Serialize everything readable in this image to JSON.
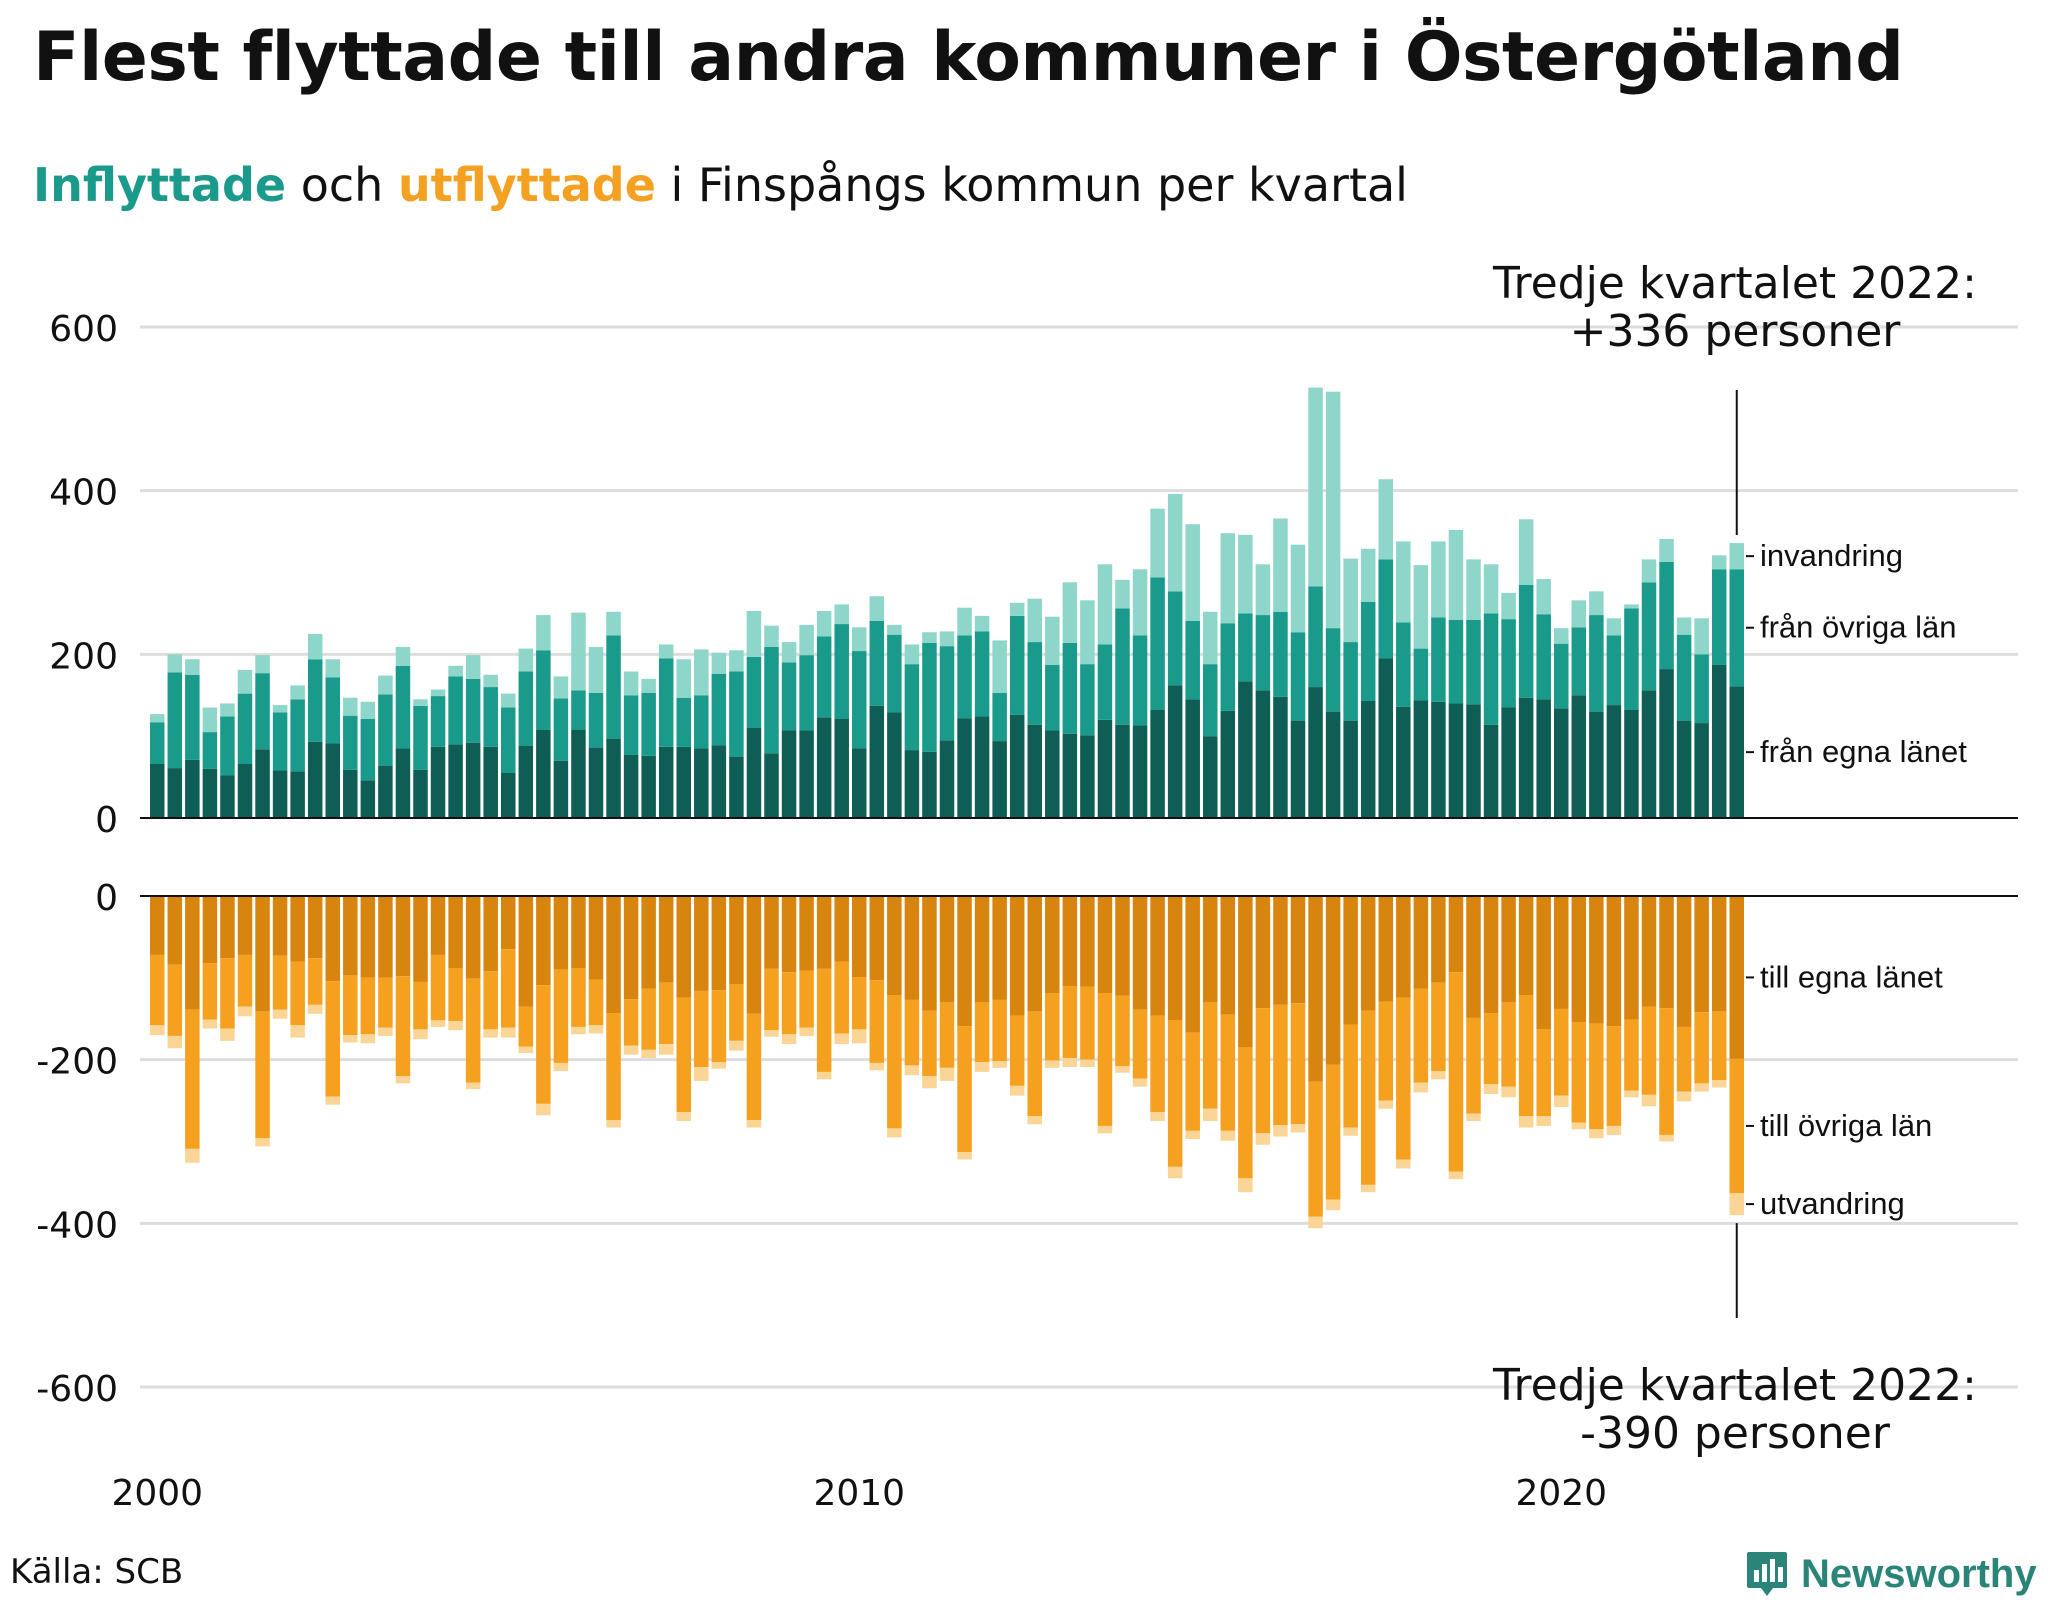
{
  "title": "Flest flyttade till andra kommuner i Östergötland",
  "subtitle": {
    "in_word": "Inflyttade",
    "mid": " och ",
    "out_word": "utflyttade",
    "rest": " i Finspångs kommun per kvartal"
  },
  "source": "Källa: SCB",
  "brand": "Newsworthy",
  "colors": {
    "in_egna": "#0f5e55",
    "in_ovriga": "#1a9a8a",
    "in_invandring": "#8ed5ca",
    "out_egna": "#d8850f",
    "out_ovriga": "#f5a01f",
    "out_utvandring": "#fbd596",
    "grid": "#dddddd"
  },
  "annotations": {
    "top_line1": "Tredje kvartalet 2022:",
    "top_line2": "+336 personer",
    "bottom_line1": "Tredje kvartalet 2022:",
    "bottom_line2": "-390 personer"
  },
  "chart_data": {
    "type": "bar",
    "stacked": true,
    "x_start": "2000 Q1",
    "x_ticks": [
      "2000",
      "2010",
      "2020"
    ],
    "top_panel": {
      "ylim": [
        0,
        600
      ],
      "y_ticks": [
        "600",
        "400",
        "200",
        "0"
      ],
      "series": [
        {
          "name": "från egna länet",
          "values": [
            66,
            61,
            71,
            60,
            52,
            66,
            84,
            58,
            57,
            93,
            91,
            59,
            46,
            64,
            85,
            59,
            87,
            90,
            92,
            87,
            55,
            88,
            108,
            70,
            108,
            86,
            97,
            77,
            76,
            87,
            87,
            85,
            89,
            75,
            110,
            79,
            107,
            107,
            123,
            121,
            85,
            137,
            129,
            83,
            81,
            95,
            122,
            124,
            94,
            126,
            114,
            107,
            103,
            101,
            120,
            114,
            113,
            132,
            162,
            145,
            100,
            131,
            167,
            156,
            148,
            119,
            160,
            130,
            119,
            143,
            195,
            136,
            144,
            142,
            140,
            139,
            114,
            135,
            147,
            145,
            134,
            150,
            130,
            138,
            132,
            156,
            182,
            119,
            116,
            187,
            161
          ]
        },
        {
          "name": "från övriga län",
          "values": [
            51,
            117,
            104,
            45,
            72,
            86,
            93,
            71,
            88,
            101,
            81,
            66,
            75,
            87,
            101,
            78,
            62,
            83,
            78,
            73,
            80,
            91,
            97,
            76,
            48,
            67,
            126,
            73,
            77,
            108,
            60,
            65,
            87,
            104,
            87,
            130,
            83,
            92,
            99,
            116,
            119,
            104,
            95,
            105,
            133,
            115,
            101,
            104,
            59,
            121,
            101,
            80,
            111,
            87,
            92,
            142,
            110,
            162,
            115,
            96,
            88,
            107,
            83,
            92,
            104,
            108,
            123,
            102,
            96,
            121,
            121,
            103,
            63,
            103,
            102,
            103,
            136,
            108,
            138,
            104,
            79,
            83,
            118,
            85,
            124,
            132,
            131,
            105,
            84,
            117,
            143
          ]
        },
        {
          "name": "invandring",
          "values": [
            10,
            22,
            19,
            30,
            16,
            29,
            22,
            9,
            17,
            31,
            22,
            22,
            21,
            23,
            23,
            8,
            8,
            13,
            29,
            15,
            17,
            28,
            43,
            27,
            95,
            56,
            29,
            29,
            17,
            17,
            47,
            56,
            26,
            26,
            56,
            26,
            25,
            37,
            31,
            24,
            29,
            30,
            12,
            24,
            13,
            18,
            34,
            19,
            64,
            16,
            53,
            59,
            74,
            78,
            98,
            35,
            81,
            84,
            119,
            118,
            64,
            110,
            96,
            62,
            114,
            107,
            243,
            289,
            102,
            65,
            98,
            99,
            102,
            93,
            110,
            74,
            60,
            32,
            80,
            43,
            19,
            33,
            29,
            21,
            5,
            28,
            28,
            21,
            44,
            17,
            32
          ]
        }
      ]
    },
    "bottom_panel": {
      "ylim": [
        -600,
        0
      ],
      "y_ticks": [
        "0",
        "-200",
        "-400",
        "-600"
      ],
      "series": [
        {
          "name": "till egna länet",
          "values": [
            -72,
            -84,
            -139,
            -82,
            -76,
            -72,
            -141,
            -73,
            -80,
            -76,
            -104,
            -97,
            -100,
            -100,
            -98,
            -105,
            -72,
            -88,
            -101,
            -92,
            -65,
            -135,
            -109,
            -90,
            -88,
            -102,
            -143,
            -126,
            -113,
            -106,
            -124,
            -116,
            -115,
            -108,
            -144,
            -89,
            -93,
            -91,
            -89,
            -80,
            -99,
            -103,
            -121,
            -127,
            -140,
            -130,
            -159,
            -130,
            -127,
            -146,
            -141,
            -119,
            -110,
            -111,
            -119,
            -122,
            -139,
            -146,
            -152,
            -167,
            -130,
            -145,
            -185,
            -137,
            -133,
            -131,
            -227,
            -206,
            -157,
            -140,
            -129,
            -124,
            -113,
            -106,
            -93,
            -149,
            -143,
            -130,
            -121,
            -163,
            -138,
            -154,
            -156,
            -159,
            -151,
            -135,
            -137,
            -160,
            -142,
            -141,
            -199
          ]
        },
        {
          "name": "till övriga län",
          "values": [
            -86,
            -87,
            -170,
            -69,
            -86,
            -63,
            -155,
            -66,
            -78,
            -57,
            -141,
            -73,
            -69,
            -61,
            -122,
            -58,
            -80,
            -65,
            -127,
            -71,
            -96,
            -49,
            -145,
            -114,
            -72,
            -56,
            -131,
            -57,
            -75,
            -75,
            -140,
            -93,
            -88,
            -69,
            -130,
            -75,
            -76,
            -70,
            -126,
            -88,
            -64,
            -101,
            -163,
            -80,
            -80,
            -80,
            -154,
            -73,
            -75,
            -86,
            -128,
            -82,
            -88,
            -89,
            -162,
            -86,
            -84,
            -118,
            -179,
            -120,
            -130,
            -142,
            -160,
            -153,
            -147,
            -148,
            -165,
            -165,
            -126,
            -213,
            -121,
            -198,
            -115,
            -108,
            -244,
            -117,
            -87,
            -103,
            -148,
            -106,
            -106,
            -123,
            -129,
            -122,
            -87,
            -108,
            -155,
            -79,
            -87,
            -84,
            -164
          ]
        },
        {
          "name": "utvandring",
          "values": [
            -12,
            -15,
            -17,
            -11,
            -15,
            -12,
            -10,
            -11,
            -15,
            -11,
            -10,
            -9,
            -11,
            -10,
            -9,
            -12,
            -8,
            -11,
            -8,
            -10,
            -12,
            -8,
            -14,
            -10,
            -9,
            -10,
            -9,
            -11,
            -10,
            -13,
            -11,
            -17,
            -8,
            -12,
            -9,
            -8,
            -12,
            -10,
            -9,
            -13,
            -17,
            -9,
            -11,
            -12,
            -15,
            -16,
            -9,
            -12,
            -8,
            -12,
            -10,
            -9,
            -11,
            -9,
            -9,
            -8,
            -10,
            -11,
            -14,
            -10,
            -15,
            -12,
            -17,
            -14,
            -14,
            -10,
            -14,
            -13,
            -10,
            -9,
            -10,
            -11,
            -12,
            -10,
            -9,
            -9,
            -12,
            -13,
            -14,
            -12,
            -14,
            -8,
            -11,
            -11,
            -8,
            -14,
            -8,
            -12,
            -10,
            -9,
            -27
          ]
        }
      ]
    }
  }
}
